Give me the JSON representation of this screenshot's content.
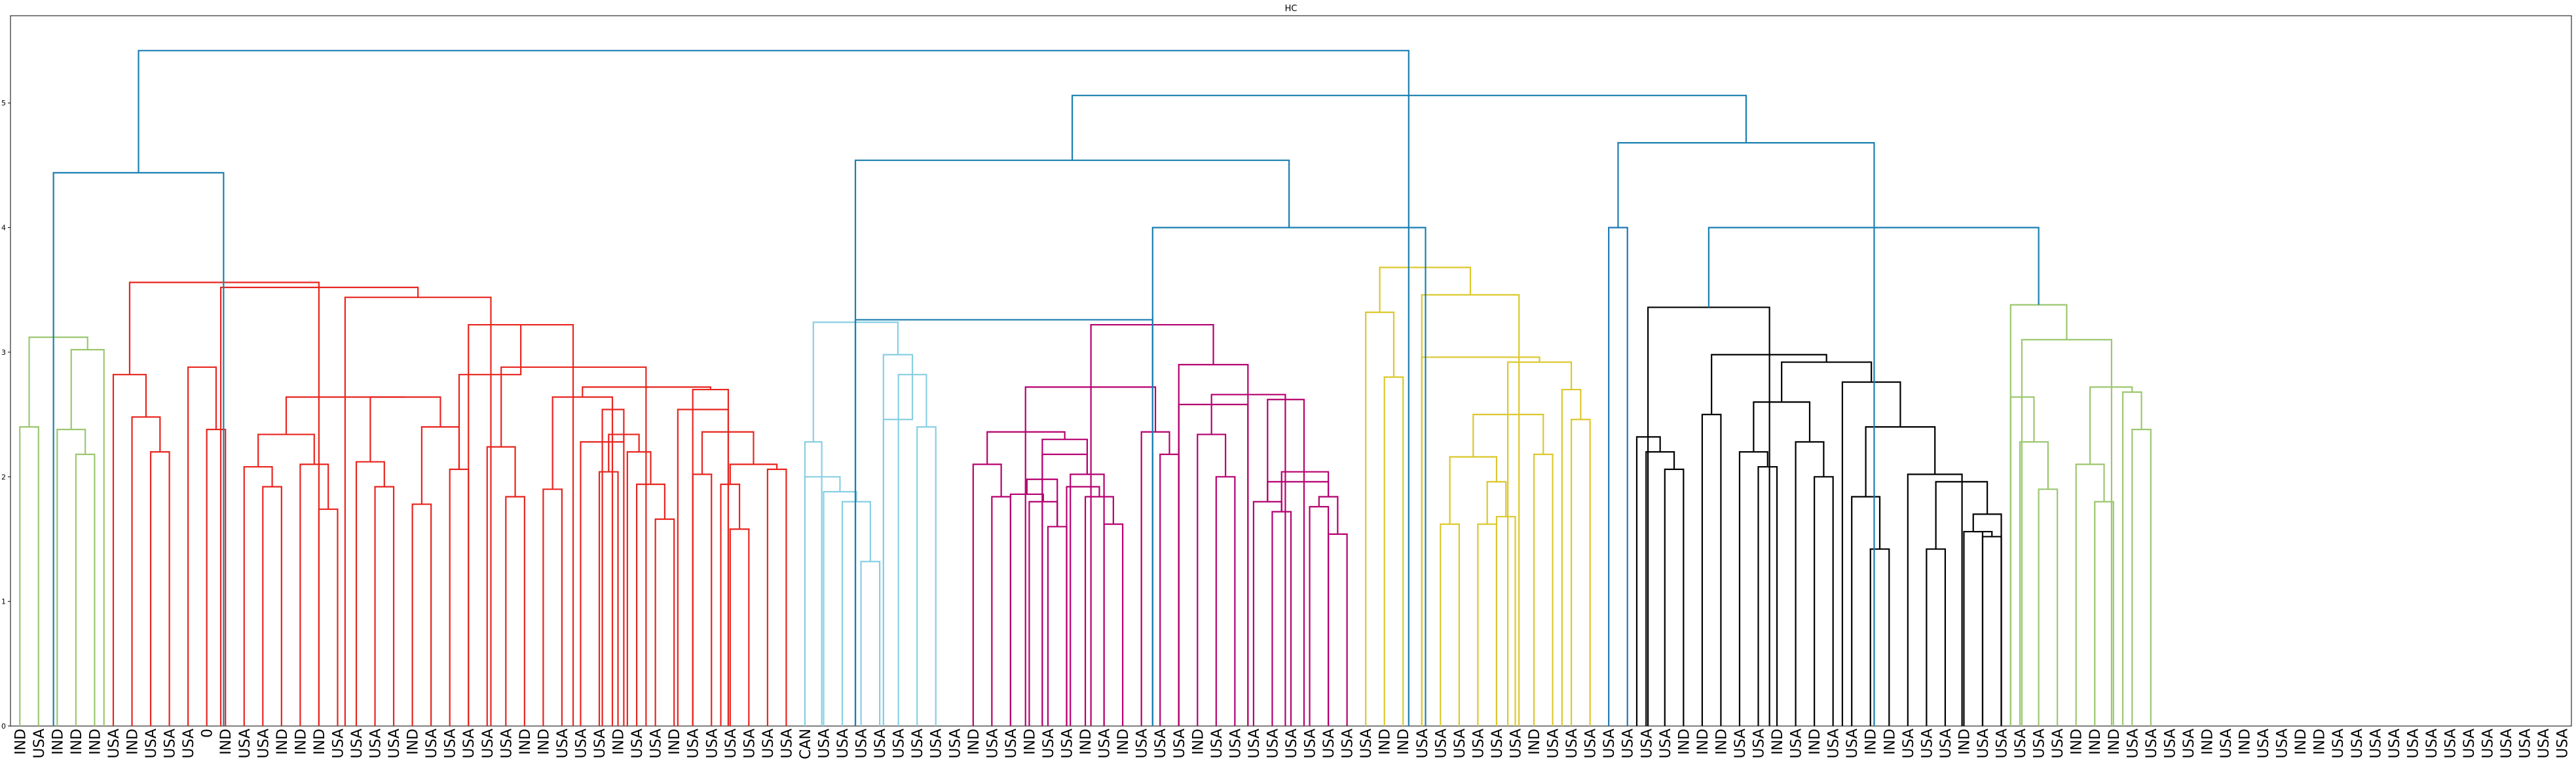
{
  "chart_data": {
    "type": "dendrogram",
    "title": "HC",
    "xlabel": "",
    "ylabel": "",
    "ylim": [
      0,
      5.7
    ],
    "yticks": [
      0,
      1,
      2,
      3,
      4,
      5
    ],
    "leaf_labels": [
      "IND",
      "USA",
      "IND",
      "IND",
      "IND",
      "USA",
      "IND",
      "USA",
      "USA",
      "USA",
      "0",
      "IND",
      "USA",
      "USA",
      "IND",
      "IND",
      "IND",
      "USA",
      "USA",
      "USA",
      "USA",
      "IND",
      "USA",
      "USA",
      "USA",
      "USA",
      "USA",
      "IND",
      "IND",
      "USA",
      "USA",
      "USA",
      "IND",
      "USA",
      "USA",
      "IND",
      "USA",
      "USA",
      "USA",
      "USA",
      "USA",
      "USA",
      "CAN",
      "USA",
      "USA",
      "USA",
      "USA",
      "USA",
      "USA",
      "USA",
      "USA",
      "IND",
      "USA",
      "USA",
      "IND",
      "USA",
      "USA",
      "IND",
      "USA",
      "IND",
      "USA",
      "USA",
      "USA",
      "IND",
      "USA",
      "USA",
      "USA",
      "USA",
      "USA",
      "USA",
      "USA",
      "USA",
      "USA",
      "IND",
      "IND",
      "USA",
      "USA",
      "USA",
      "USA",
      "USA",
      "USA",
      "IND",
      "USA",
      "USA",
      "USA",
      "USA",
      "USA",
      "USA",
      "USA",
      "IND",
      "IND",
      "IND",
      "USA",
      "USA",
      "IND",
      "USA",
      "IND",
      "USA",
      "USA",
      "IND",
      "IND",
      "USA",
      "USA",
      "USA",
      "IND",
      "USA",
      "USA",
      "USA",
      "USA",
      "USA",
      "IND",
      "IND",
      "IND",
      "USA",
      "USA",
      "USA",
      "USA",
      "IND",
      "USA",
      "IND",
      "USA",
      "USA",
      "IND",
      "IND",
      "USA",
      "USA",
      "USA",
      "USA",
      "USA",
      "USA",
      "USA",
      "USA",
      "USA",
      "USA",
      "USA",
      "USA",
      "USA"
    ],
    "colors": {
      "green": "#9cc76f",
      "red": "#e8251f",
      "cyan": "#88cfe3",
      "magenta": "#b5006f",
      "yellow": "#dcc82c",
      "blue": "#1f77b4",
      "black": "#000000",
      "teal": "#1a7fb0"
    },
    "links": [
      {
        "l": 0,
        "r": 1,
        "h": 2.4,
        "c": "green"
      },
      {
        "l": 3,
        "r": 4,
        "h": 2.18,
        "c": "green"
      },
      {
        "l": 2,
        "r": 3.5,
        "h": 2.38,
        "c": "green"
      },
      {
        "l": 2.75,
        "r": 4.5,
        "h": 3.02,
        "c": "green"
      },
      {
        "l": 0.5,
        "r": 3.625,
        "h": 3.12,
        "c": "green"
      },
      {
        "l": 7,
        "r": 8,
        "h": 2.2,
        "c": "red"
      },
      {
        "l": 6,
        "r": 7.5,
        "h": 2.48,
        "c": "red"
      },
      {
        "l": 5,
        "r": 6.75,
        "h": 2.82,
        "c": "red"
      },
      {
        "l": 10,
        "r": 11,
        "h": 2.38,
        "c": "red"
      },
      {
        "l": 9,
        "r": 10.5,
        "h": 2.88,
        "c": "red"
      },
      {
        "l": 13,
        "r": 14,
        "h": 1.92,
        "c": "red"
      },
      {
        "l": 12,
        "r": 13.5,
        "h": 2.08,
        "c": "red"
      },
      {
        "l": 16,
        "r": 17,
        "h": 1.74,
        "c": "red"
      },
      {
        "l": 15,
        "r": 16.5,
        "h": 2.1,
        "c": "red"
      },
      {
        "l": 12.75,
        "r": 15.75,
        "h": 2.34,
        "c": "red"
      },
      {
        "l": 19,
        "r": 20,
        "h": 1.92,
        "c": "red"
      },
      {
        "l": 18,
        "r": 19.5,
        "h": 2.12,
        "c": "red"
      },
      {
        "l": 21,
        "r": 22,
        "h": 1.78,
        "c": "red"
      },
      {
        "l": 23,
        "r": 24,
        "h": 2.06,
        "c": "red"
      },
      {
        "l": 21.5,
        "r": 23.5,
        "h": 2.4,
        "c": "red"
      },
      {
        "l": 18.75,
        "r": 22.5,
        "h": 2.64,
        "c": "red"
      },
      {
        "l": 14.25,
        "r": 20.625,
        "h": 2.64,
        "c": "red"
      },
      {
        "l": 26,
        "r": 27,
        "h": 1.84,
        "c": "red"
      },
      {
        "l": 25,
        "r": 26.5,
        "h": 2.24,
        "c": "red"
      },
      {
        "l": 28,
        "r": 29,
        "h": 1.9,
        "c": "red"
      },
      {
        "l": 31,
        "r": 32,
        "h": 2.04,
        "c": "red"
      },
      {
        "l": 34,
        "r": 35,
        "h": 1.66,
        "c": "red"
      },
      {
        "l": 33,
        "r": 34.5,
        "h": 1.94,
        "c": "red"
      },
      {
        "l": 32.5,
        "r": 33.75,
        "h": 2.2,
        "c": "red"
      },
      {
        "l": 31.5,
        "r": 33.125,
        "h": 2.34,
        "c": "red"
      },
      {
        "l": 30,
        "r": 32.3125,
        "h": 2.28,
        "c": "red"
      },
      {
        "l": 31.16,
        "r": 32.31,
        "h": 2.54,
        "c": "red"
      },
      {
        "l": 28.5,
        "r": 31.7,
        "h": 2.64,
        "c": "red"
      },
      {
        "l": 36,
        "r": 37,
        "h": 2.02,
        "c": "red"
      },
      {
        "l": 38,
        "r": 39,
        "h": 1.58,
        "c": "red"
      },
      {
        "l": 37.5,
        "r": 38.5,
        "h": 1.94,
        "c": "red"
      },
      {
        "l": 40,
        "r": 41,
        "h": 2.06,
        "c": "red"
      },
      {
        "l": 38,
        "r": 40.5,
        "h": 2.1,
        "c": "red"
      },
      {
        "l": 36.5,
        "r": 39.25,
        "h": 2.36,
        "c": "red"
      },
      {
        "l": 35.2,
        "r": 37.9,
        "h": 2.54,
        "c": "red"
      },
      {
        "l": 36,
        "r": 37.9,
        "h": 2.7,
        "c": "red"
      },
      {
        "l": 30.1,
        "r": 36.95,
        "h": 2.72,
        "c": "red"
      },
      {
        "l": 25.75,
        "r": 33.5,
        "h": 2.88,
        "c": "red"
      },
      {
        "l": 24,
        "r": 29.6,
        "h": 3.22,
        "c": "red"
      },
      {
        "l": 23.5,
        "r": 26.8,
        "h": 2.82,
        "c": "red"
      },
      {
        "l": 17.4,
        "r": 25.2,
        "h": 3.44,
        "c": "red"
      },
      {
        "l": 10.75,
        "r": 21.3,
        "h": 3.52,
        "c": "red"
      },
      {
        "l": 5.875,
        "r": 16,
        "h": 3.56,
        "c": "red"
      },
      {
        "l": 45,
        "r": 46,
        "h": 1.32,
        "c": "cyan"
      },
      {
        "l": 44,
        "r": 45.5,
        "h": 1.8,
        "c": "cyan"
      },
      {
        "l": 43,
        "r": 44.75,
        "h": 1.88,
        "c": "cyan"
      },
      {
        "l": 42,
        "r": 43.875,
        "h": 2.0,
        "c": "cyan"
      },
      {
        "l": 42,
        "r": 42.9,
        "h": 2.28,
        "c": "cyan"
      },
      {
        "l": 48,
        "r": 49,
        "h": 2.4,
        "c": "cyan"
      },
      {
        "l": 47,
        "r": 48.5,
        "h": 2.82,
        "c": "cyan"
      },
      {
        "l": 46.2,
        "r": 47.75,
        "h": 2.46,
        "c": "cyan"
      },
      {
        "l": 46.2,
        "r": 47.75,
        "h": 2.98,
        "c": "cyan"
      },
      {
        "l": 42.45,
        "r": 46.975,
        "h": 3.24,
        "c": "cyan"
      },
      {
        "l": 52,
        "r": 53,
        "h": 1.84,
        "c": "magenta"
      },
      {
        "l": 51,
        "r": 52.5,
        "h": 2.1,
        "c": "magenta"
      },
      {
        "l": 55,
        "r": 56,
        "h": 1.6,
        "c": "magenta"
      },
      {
        "l": 54,
        "r": 55.5,
        "h": 1.8,
        "c": "magenta"
      },
      {
        "l": 53,
        "r": 54.75,
        "h": 1.86,
        "c": "magenta"
      },
      {
        "l": 53.875,
        "r": 55.5,
        "h": 1.98,
        "c": "magenta"
      },
      {
        "l": 58,
        "r": 59,
        "h": 1.62,
        "c": "magenta"
      },
      {
        "l": 57,
        "r": 58.5,
        "h": 1.84,
        "c": "magenta"
      },
      {
        "l": 56,
        "r": 57.75,
        "h": 1.92,
        "c": "magenta"
      },
      {
        "l": 56.2,
        "r": 58.0,
        "h": 2.02,
        "c": "magenta"
      },
      {
        "l": 54.7,
        "r": 57.1,
        "h": 2.18,
        "c": "magenta"
      },
      {
        "l": 54.7,
        "r": 57.1,
        "h": 2.3,
        "c": "magenta"
      },
      {
        "l": 51.75,
        "r": 55.9,
        "h": 2.36,
        "c": "magenta"
      },
      {
        "l": 61,
        "r": 62,
        "h": 2.18,
        "c": "magenta"
      },
      {
        "l": 60,
        "r": 61.5,
        "h": 2.36,
        "c": "magenta"
      },
      {
        "l": 53.8,
        "r": 60.75,
        "h": 2.72,
        "c": "magenta"
      },
      {
        "l": 64,
        "r": 65,
        "h": 2.0,
        "c": "magenta"
      },
      {
        "l": 63,
        "r": 64.5,
        "h": 2.34,
        "c": "magenta"
      },
      {
        "l": 67,
        "r": 68,
        "h": 1.72,
        "c": "magenta"
      },
      {
        "l": 66,
        "r": 67.5,
        "h": 1.8,
        "c": "magenta"
      },
      {
        "l": 69,
        "r": 70,
        "h": 1.76,
        "c": "magenta"
      },
      {
        "l": 70,
        "r": 71,
        "h": 1.54,
        "c": "magenta"
      },
      {
        "l": 69.5,
        "r": 70.5,
        "h": 1.84,
        "c": "magenta"
      },
      {
        "l": 66.75,
        "r": 70,
        "h": 1.96,
        "c": "magenta"
      },
      {
        "l": 67.5,
        "r": 70,
        "h": 2.04,
        "c": "magenta"
      },
      {
        "l": 66.75,
        "r": 68.7,
        "h": 2.62,
        "c": "magenta"
      },
      {
        "l": 63.75,
        "r": 67.7,
        "h": 2.66,
        "c": "magenta"
      },
      {
        "l": 62,
        "r": 65.7,
        "h": 2.58,
        "c": "magenta"
      },
      {
        "l": 62,
        "r": 65.7,
        "h": 2.9,
        "c": "magenta"
      },
      {
        "l": 57.3,
        "r": 63.85,
        "h": 3.22,
        "c": "magenta"
      },
      {
        "l": 73,
        "r": 74,
        "h": 2.8,
        "c": "yellow"
      },
      {
        "l": 72,
        "r": 73.5,
        "h": 3.32,
        "c": "yellow"
      },
      {
        "l": 76,
        "r": 77,
        "h": 1.62,
        "c": "yellow"
      },
      {
        "l": 78,
        "r": 79,
        "h": 1.62,
        "c": "yellow"
      },
      {
        "l": 79,
        "r": 80,
        "h": 1.68,
        "c": "yellow"
      },
      {
        "l": 78.5,
        "r": 79.5,
        "h": 1.96,
        "c": "yellow"
      },
      {
        "l": 76.5,
        "r": 79,
        "h": 2.16,
        "c": "yellow"
      },
      {
        "l": 81,
        "r": 82,
        "h": 2.18,
        "c": "yellow"
      },
      {
        "l": 77.75,
        "r": 81.5,
        "h": 2.5,
        "c": "yellow"
      },
      {
        "l": 83,
        "r": 84,
        "h": 2.46,
        "c": "yellow"
      },
      {
        "l": 82.5,
        "r": 83.5,
        "h": 2.7,
        "c": "yellow"
      },
      {
        "l": 79.6,
        "r": 83,
        "h": 2.92,
        "c": "yellow"
      },
      {
        "l": 75,
        "r": 81.3,
        "h": 2.96,
        "c": "yellow"
      },
      {
        "l": 75,
        "r": 80.2,
        "h": 3.46,
        "c": "yellow"
      },
      {
        "l": 72.75,
        "r": 77.6,
        "h": 3.68,
        "c": "yellow"
      },
      {
        "l": 85,
        "r": 86,
        "h": 4.0,
        "c": "blue"
      },
      {
        "l": 88,
        "r": 89,
        "h": 2.06,
        "c": "black"
      },
      {
        "l": 87,
        "r": 88.5,
        "h": 2.2,
        "c": "black"
      },
      {
        "l": 86.5,
        "r": 87.75,
        "h": 2.32,
        "c": "black"
      },
      {
        "l": 90,
        "r": 91,
        "h": 2.5,
        "c": "black"
      },
      {
        "l": 93,
        "r": 94,
        "h": 2.08,
        "c": "black"
      },
      {
        "l": 92,
        "r": 93.5,
        "h": 2.2,
        "c": "black"
      },
      {
        "l": 96,
        "r": 97,
        "h": 2.0,
        "c": "black"
      },
      {
        "l": 95,
        "r": 96.5,
        "h": 2.28,
        "c": "black"
      },
      {
        "l": 92.75,
        "r": 95.75,
        "h": 2.6,
        "c": "black"
      },
      {
        "l": 99,
        "r": 100,
        "h": 1.42,
        "c": "black"
      },
      {
        "l": 98,
        "r": 99.5,
        "h": 1.84,
        "c": "black"
      },
      {
        "l": 102,
        "r": 103,
        "h": 1.42,
        "c": "black"
      },
      {
        "l": 104,
        "r": 105,
        "h": 1.56,
        "c": "black"
      },
      {
        "l": 105,
        "r": 106,
        "h": 1.52,
        "c": "black"
      },
      {
        "l": 104.5,
        "r": 105.5,
        "h": 1.56,
        "c": "black"
      },
      {
        "l": 104.5,
        "r": 106,
        "h": 1.7,
        "c": "black"
      },
      {
        "l": 102.5,
        "r": 105.25,
        "h": 1.96,
        "c": "black"
      },
      {
        "l": 101,
        "r": 103.9,
        "h": 2.02,
        "c": "black"
      },
      {
        "l": 98.75,
        "r": 102.45,
        "h": 2.4,
        "c": "black"
      },
      {
        "l": 97.5,
        "r": 100.6,
        "h": 2.76,
        "c": "black"
      },
      {
        "l": 94.25,
        "r": 99.05,
        "h": 2.92,
        "c": "black"
      },
      {
        "l": 90.5,
        "r": 96.65,
        "h": 2.98,
        "c": "black"
      },
      {
        "l": 87.1,
        "r": 93.6,
        "h": 3.36,
        "c": "black"
      },
      {
        "l": 108,
        "r": 109,
        "h": 1.9,
        "c": "green"
      },
      {
        "l": 107,
        "r": 108.5,
        "h": 2.28,
        "c": "green"
      },
      {
        "l": 106.5,
        "r": 107.75,
        "h": 2.64,
        "c": "green"
      },
      {
        "l": 111,
        "r": 112,
        "h": 1.8,
        "c": "green"
      },
      {
        "l": 110,
        "r": 111.5,
        "h": 2.1,
        "c": "green"
      },
      {
        "l": 113,
        "r": 114,
        "h": 2.38,
        "c": "green"
      },
      {
        "l": 112.5,
        "r": 113.5,
        "h": 2.68,
        "c": "green"
      },
      {
        "l": 110.75,
        "r": 113,
        "h": 2.72,
        "c": "green"
      },
      {
        "l": 107.1,
        "r": 111.9,
        "h": 3.1,
        "c": "green"
      },
      {
        "l": 106.5,
        "r": 109.5,
        "h": 3.38,
        "c": "green"
      },
      {
        "l": 1.8,
        "r": 10.9,
        "h": 4.44,
        "c": "teal"
      },
      {
        "l": 44.7,
        "r": 60.6,
        "h": 3.26,
        "c": "teal"
      },
      {
        "l": 60.6,
        "r": 75.2,
        "h": 4.0,
        "c": "teal"
      },
      {
        "l": 44.7,
        "r": 67.9,
        "h": 4.54,
        "c": "teal"
      },
      {
        "l": 90.35,
        "r": 108,
        "h": 4.0,
        "c": "teal"
      },
      {
        "l": 85.5,
        "r": 99.2,
        "h": 4.68,
        "c": "teal"
      },
      {
        "l": 56.3,
        "r": 92.35,
        "h": 5.06,
        "c": "teal"
      },
      {
        "l": 6.35,
        "r": 74.3,
        "h": 5.42,
        "c": "teal"
      }
    ]
  }
}
